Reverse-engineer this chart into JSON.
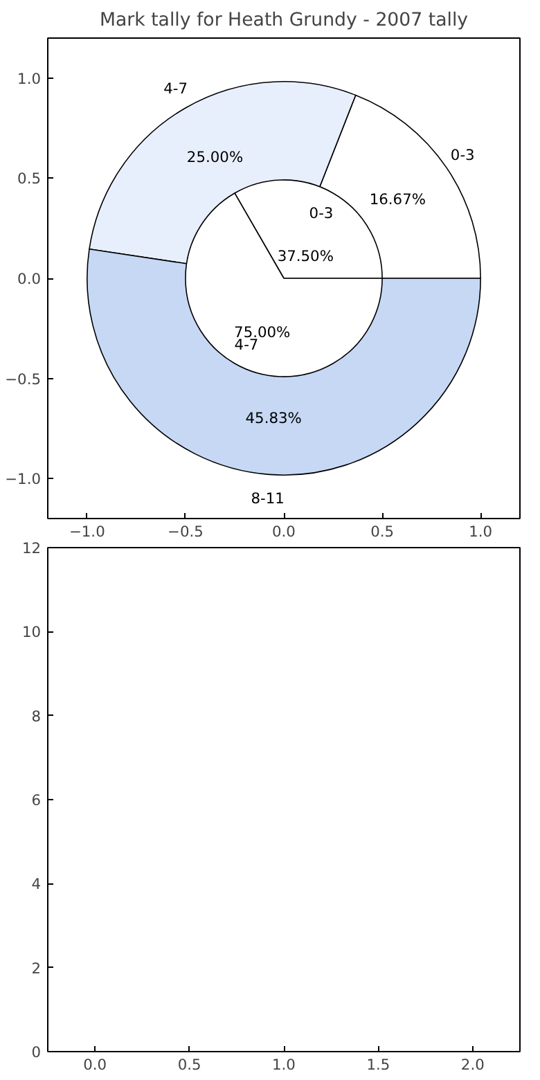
{
  "chart_data": [
    {
      "type": "scatter",
      "title": "Mark tally for Heath Grundy - 2007 tally",
      "xlim": [
        -1.2,
        1.2
      ],
      "ylim": [
        -1.2,
        1.2
      ],
      "xticks": [
        {
          "value": -1,
          "label": "−1.0"
        },
        {
          "value": -0.5,
          "label": "−0.5"
        },
        {
          "value": 0,
          "label": "0.0"
        },
        {
          "value": 0.5,
          "label": "0.5"
        },
        {
          "value": 1,
          "label": "1.0"
        }
      ],
      "yticks": [
        {
          "value": -1,
          "label": "−1.0"
        },
        {
          "value": -0.5,
          "label": "−0.5"
        },
        {
          "value": 0,
          "label": "0.0"
        },
        {
          "value": 0.5,
          "label": "0.5"
        },
        {
          "value": 1,
          "label": "1.0"
        }
      ]
    },
    {
      "type": "pie",
      "categories": [
        "0-3",
        "4-7",
        "8-11"
      ],
      "series": [
        {
          "values": [
            16.67,
            25.0,
            45.83
          ],
          "colors": [
            "#ffffff",
            "#e8effc",
            "#c6d8f4"
          ],
          "value_labels": [
            "16.67%",
            "25.00%",
            "45.83%"
          ]
        },
        {
          "values": [
            37.5,
            75.0,
            null
          ],
          "colors": [
            "#ffffff",
            "#ffffff",
            null
          ],
          "value_labels": [
            "37.50%",
            "75.00%",
            null
          ]
        }
      ]
    },
    {
      "type": "scatter",
      "xlim": [
        -0.25,
        2.25
      ],
      "ylim": [
        0,
        12
      ],
      "xticks": [
        {
          "value": 0,
          "label": "0.0"
        },
        {
          "value": 0.5,
          "label": "0.5"
        },
        {
          "value": 1,
          "label": "1.0"
        },
        {
          "value": 1.5,
          "label": "1.5"
        },
        {
          "value": 2,
          "label": "2.0"
        }
      ],
      "yticks": [
        0,
        2,
        4,
        6,
        8,
        10,
        12
      ]
    }
  ]
}
